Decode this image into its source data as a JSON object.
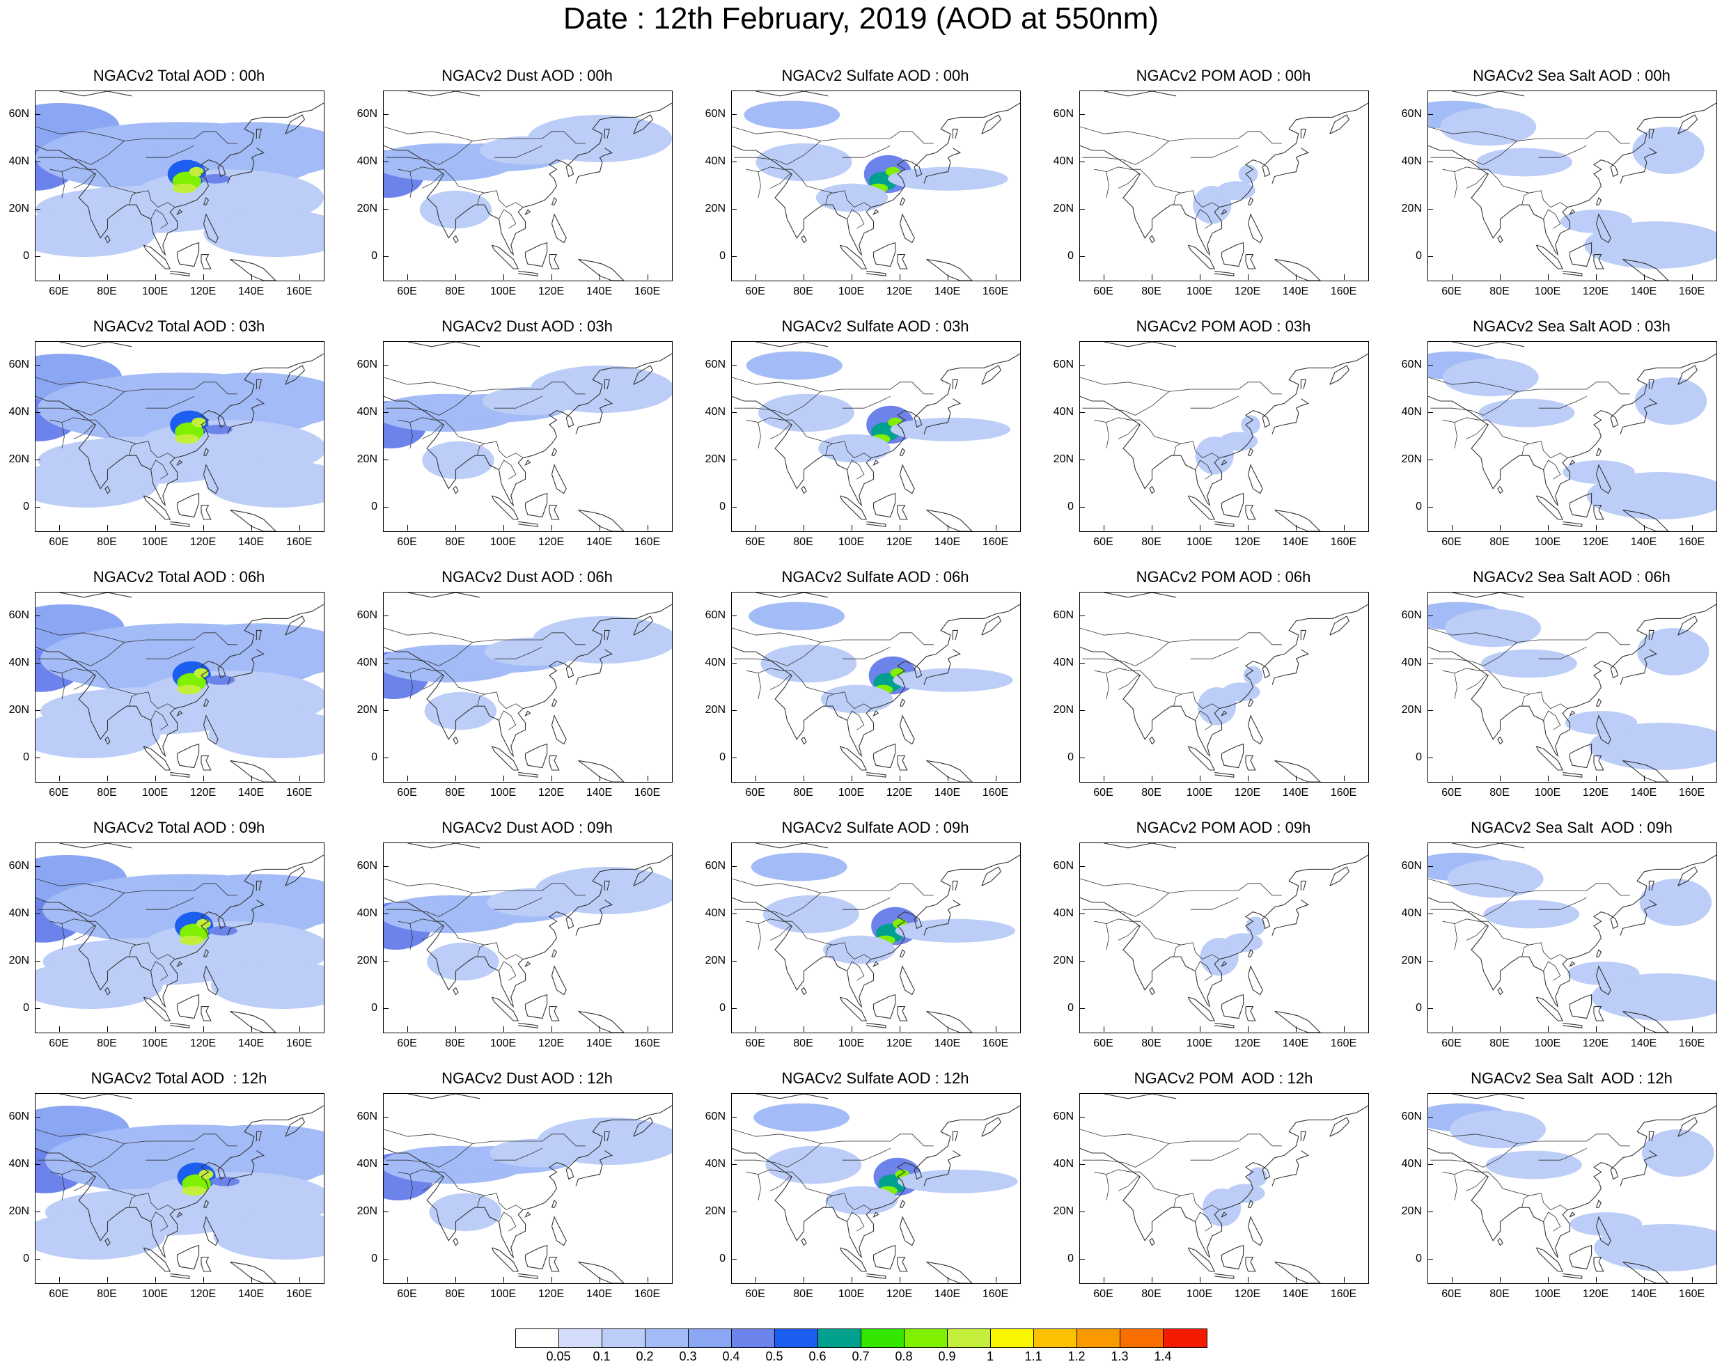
{
  "title": "Date : 12th February, 2019 (AOD at 550nm)",
  "map_axes": {
    "lat_ticks": [
      "60N",
      "40N",
      "20N",
      "0"
    ],
    "lon_ticks": [
      "60E",
      "80E",
      "100E",
      "120E",
      "140E",
      "160E"
    ],
    "lon_range": [
      50,
      170
    ],
    "lat_range": [
      -10,
      70
    ]
  },
  "panels": [
    [
      "NGACv2 Total AOD : 00h",
      "NGACv2 Dust AOD : 00h",
      "NGACv2 Sulfate AOD : 00h",
      "NGACv2 POM AOD : 00h",
      "NGACv2 Sea Salt AOD : 00h"
    ],
    [
      "NGACv2 Total AOD : 03h",
      "NGACv2 Dust AOD : 03h",
      "NGACv2 Sulfate AOD : 03h",
      "NGACv2 POM AOD : 03h",
      "NGACv2 Sea Salt AOD : 03h"
    ],
    [
      "NGACv2 Total AOD : 06h",
      "NGACv2 Dust AOD : 06h",
      "NGACv2 Sulfate AOD : 06h",
      "NGACv2 POM AOD : 06h",
      "NGACv2 Sea Salt AOD : 06h"
    ],
    [
      "NGACv2 Total AOD : 09h",
      "NGACv2 Dust AOD : 09h",
      "NGACv2 Sulfate AOD : 09h",
      "NGACv2 POM AOD : 09h",
      "NGACv2 Sea Salt  AOD : 09h"
    ],
    [
      "NGACv2 Total AOD  : 12h",
      "NGACv2 Dust AOD : 12h",
      "NGACv2 Sulfate AOD : 12h",
      "NGACv2 POM  AOD : 12h",
      "NGACv2 Sea Salt  AOD : 12h"
    ]
  ],
  "colorbar": {
    "labels": [
      "0.05",
      "0.1",
      "0.2",
      "0.3",
      "0.4",
      "0.5",
      "0.6",
      "0.7",
      "0.8",
      "0.9",
      "1",
      "1.1",
      "1.2",
      "1.3",
      "1.4"
    ],
    "colors": [
      "#ffffff",
      "#d4defb",
      "#bccdf8",
      "#a3bbf6",
      "#8ba6f2",
      "#6d83ec",
      "#1b5ef0",
      "#00a08e",
      "#33e600",
      "#80f000",
      "#c3ef3c",
      "#fbf700",
      "#fcc100",
      "#fb9a00",
      "#f86f00",
      "#f41c00"
    ]
  }
}
